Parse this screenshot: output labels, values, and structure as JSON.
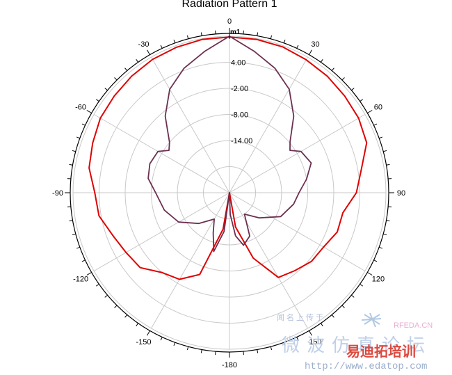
{
  "chart_data": {
    "type": "polar-line",
    "title": "Radiation Pattern 1",
    "angle_ticks": [
      0,
      30,
      60,
      90,
      120,
      150,
      -180,
      -150,
      -120,
      -90,
      -60,
      -30
    ],
    "radial_ticks": [
      "4.00",
      "-2.00",
      "-8.00",
      "-14.00"
    ],
    "radial_range": [
      -26,
      10
    ],
    "marker": {
      "label": "m1",
      "angle": 0,
      "value": 10
    },
    "series": [
      {
        "color": "#e00000",
        "points": [
          [
            0,
            9.8
          ],
          [
            10,
            9.8
          ],
          [
            20,
            9.7
          ],
          [
            30,
            9.3
          ],
          [
            40,
            9.0
          ],
          [
            50,
            8.6
          ],
          [
            60,
            8.3
          ],
          [
            70,
            7.6
          ],
          [
            80,
            4.8
          ],
          [
            90,
            3.2
          ],
          [
            100,
            0.5
          ],
          [
            110,
            0.4
          ],
          [
            120,
            -1.0
          ],
          [
            130,
            -1.4
          ],
          [
            140,
            -2.6
          ],
          [
            150,
            -3.5
          ],
          [
            160,
            -10.0
          ],
          [
            170,
            -18.0
          ],
          [
            180,
            -26.0
          ],
          [
            -170,
            -17.5
          ],
          [
            -160,
            -6.0
          ],
          [
            -150,
            -3.0
          ],
          [
            -140,
            -2.0
          ],
          [
            -130,
            0.8
          ],
          [
            -120,
            1.5
          ],
          [
            -110,
            2.6
          ],
          [
            -100,
            4.5
          ],
          [
            -90,
            5.0
          ],
          [
            -80,
            6.8
          ],
          [
            -70,
            7.5
          ],
          [
            -60,
            8.3
          ],
          [
            -50,
            8.6
          ],
          [
            -40,
            9.0
          ],
          [
            -30,
            9.4
          ],
          [
            -20,
            9.6
          ],
          [
            -10,
            9.8
          ],
          [
            0,
            9.8
          ]
        ]
      },
      {
        "color": "#6b2f50",
        "points": [
          [
            0,
            10.0
          ],
          [
            10,
            7.0
          ],
          [
            20,
            4.5
          ],
          [
            30,
            1.5
          ],
          [
            40,
            -3.0
          ],
          [
            50,
            -7.8
          ],
          [
            55,
            -9.0
          ],
          [
            60,
            -7.0
          ],
          [
            70,
            -6.0
          ],
          [
            80,
            -8.0
          ],
          [
            90,
            -10.0
          ],
          [
            100,
            -11.0
          ],
          [
            115,
            -13.0
          ],
          [
            130,
            -17.0
          ],
          [
            145,
            -20.0
          ],
          [
            155,
            -15.0
          ],
          [
            165,
            -13.5
          ],
          [
            172,
            -16.0
          ],
          [
            178,
            -21.0
          ],
          [
            180,
            -26.0
          ],
          [
            -172,
            -17.0
          ],
          [
            -165,
            -12.0
          ],
          [
            -158,
            -16.0
          ],
          [
            -150,
            -19.0
          ],
          [
            -135,
            -16.0
          ],
          [
            -120,
            -12.5
          ],
          [
            -105,
            -10.5
          ],
          [
            -90,
            -9.0
          ],
          [
            -80,
            -7.0
          ],
          [
            -70,
            -6.5
          ],
          [
            -60,
            -7.0
          ],
          [
            -55,
            -9.0
          ],
          [
            -50,
            -8.0
          ],
          [
            -40,
            -3.0
          ],
          [
            -30,
            1.5
          ],
          [
            -20,
            4.5
          ],
          [
            -10,
            7.0
          ],
          [
            0,
            10.0
          ]
        ]
      }
    ],
    "grid": true
  },
  "watermark": {
    "cn_small": "闻名上传于",
    "cn_large": "微波仿真论坛",
    "rfeda": "RFEDA.CN",
    "brand": "易迪拓培训",
    "url": "http://www.edatop.com"
  }
}
